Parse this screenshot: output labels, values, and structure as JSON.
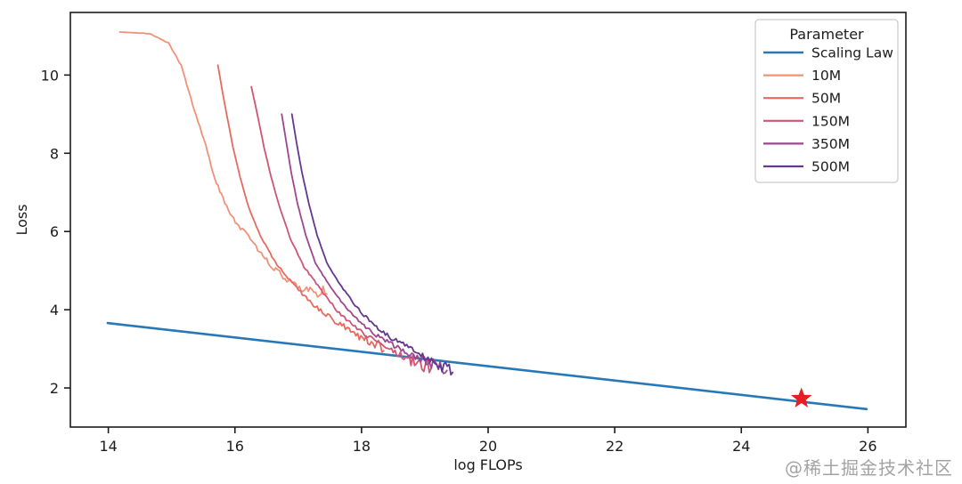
{
  "watermark": "@稀土掘金技术社区",
  "chart_data": {
    "type": "line",
    "title": "",
    "xlabel": "log FLOPs",
    "ylabel": "Loss",
    "xlim": [
      13.4,
      26.6
    ],
    "ylim": [
      1.0,
      11.6
    ],
    "xticks": [
      14,
      16,
      18,
      20,
      22,
      24,
      26
    ],
    "yticks": [
      2,
      4,
      6,
      8,
      10
    ],
    "grid": false,
    "legend": {
      "title": "Parameter",
      "position": "upper right"
    },
    "series": [
      {
        "name": "Scaling Law",
        "color": "#2878b8",
        "width": 2.6,
        "noise": 0,
        "points": [
          [
            13.99,
            3.66
          ],
          [
            25.98,
            1.46
          ]
        ]
      },
      {
        "name": "10M",
        "color": "#f0917a",
        "width": 1.8,
        "noise": 0.12,
        "points": [
          [
            14.18,
            11.1
          ],
          [
            14.65,
            11.06
          ],
          [
            14.95,
            10.82
          ],
          [
            15.15,
            10.25
          ],
          [
            15.33,
            9.25
          ],
          [
            15.54,
            8.2
          ],
          [
            15.68,
            7.35
          ],
          [
            15.84,
            6.75
          ],
          [
            15.98,
            6.3
          ],
          [
            16.22,
            5.85
          ],
          [
            16.5,
            5.28
          ],
          [
            16.82,
            4.72
          ],
          [
            17.16,
            4.5
          ],
          [
            17.45,
            4.4
          ]
        ]
      },
      {
        "name": "50M",
        "color": "#e66a60",
        "width": 1.8,
        "noise": 0.12,
        "points": [
          [
            15.73,
            10.25
          ],
          [
            15.8,
            9.6
          ],
          [
            15.88,
            8.9
          ],
          [
            15.97,
            8.15
          ],
          [
            16.08,
            7.4
          ],
          [
            16.22,
            6.6
          ],
          [
            16.4,
            5.9
          ],
          [
            16.64,
            5.2
          ],
          [
            16.92,
            4.65
          ],
          [
            17.27,
            4.08
          ],
          [
            17.55,
            3.75
          ],
          [
            17.83,
            3.45
          ],
          [
            18.1,
            3.2
          ],
          [
            18.35,
            2.95
          ]
        ]
      },
      {
        "name": "150M",
        "color": "#d05476",
        "width": 1.8,
        "noise": 0.12,
        "points": [
          [
            16.26,
            9.7
          ],
          [
            16.36,
            8.95
          ],
          [
            16.46,
            8.15
          ],
          [
            16.57,
            7.4
          ],
          [
            16.71,
            6.6
          ],
          [
            16.88,
            5.8
          ],
          [
            17.09,
            5.1
          ],
          [
            17.34,
            4.55
          ],
          [
            17.62,
            3.95
          ],
          [
            17.9,
            3.55
          ],
          [
            18.18,
            3.22
          ],
          [
            18.53,
            2.92
          ],
          [
            18.81,
            2.7
          ],
          [
            19.1,
            2.5
          ]
        ]
      },
      {
        "name": "350M",
        "color": "#9e4690",
        "width": 1.8,
        "noise": 0.12,
        "points": [
          [
            16.74,
            9.0
          ],
          [
            16.81,
            8.3
          ],
          [
            16.89,
            7.5
          ],
          [
            16.99,
            6.7
          ],
          [
            17.12,
            5.9
          ],
          [
            17.27,
            5.2
          ],
          [
            17.48,
            4.65
          ],
          [
            17.73,
            4.1
          ],
          [
            18.01,
            3.62
          ],
          [
            18.29,
            3.28
          ],
          [
            18.6,
            3.0
          ],
          [
            18.88,
            2.78
          ],
          [
            19.16,
            2.6
          ],
          [
            19.35,
            2.45
          ]
        ]
      },
      {
        "name": "500M",
        "color": "#643790",
        "width": 1.8,
        "noise": 0.12,
        "points": [
          [
            16.9,
            9.0
          ],
          [
            16.97,
            8.3
          ],
          [
            17.06,
            7.5
          ],
          [
            17.17,
            6.7
          ],
          [
            17.3,
            5.9
          ],
          [
            17.45,
            5.2
          ],
          [
            17.66,
            4.65
          ],
          [
            17.9,
            4.1
          ],
          [
            18.18,
            3.62
          ],
          [
            18.46,
            3.28
          ],
          [
            18.77,
            3.0
          ],
          [
            19.05,
            2.75
          ],
          [
            19.3,
            2.55
          ],
          [
            19.44,
            2.4
          ]
        ]
      }
    ],
    "marker": {
      "shape": "star",
      "x": 24.95,
      "y": 1.73,
      "color": "#e81e24"
    }
  }
}
